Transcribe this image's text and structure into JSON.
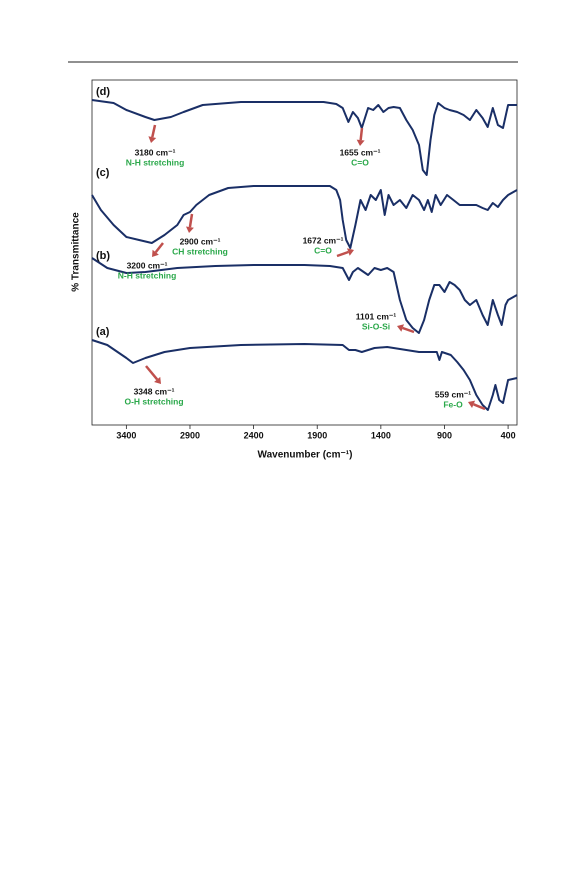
{
  "chart_data": {
    "type": "line",
    "xlabel": "Wavenumber (cm⁻¹)",
    "ylabel": "% Transmittance",
    "xlim": [
      3670,
      330
    ],
    "ylim": [
      0,
      345
    ],
    "xticks": [
      3400,
      2900,
      2400,
      1900,
      1400,
      900,
      400
    ],
    "series": [
      {
        "name": "(a)",
        "color": "#1a2f66",
        "x": [
          3670,
          3550,
          3400,
          3348,
          3250,
          3100,
          2900,
          2500,
          2000,
          1700,
          1650,
          1600,
          1550,
          1450,
          1350,
          1300,
          1200,
          1100,
          1000,
          960,
          940,
          920,
          850,
          800,
          750,
          700,
          650,
          600,
          559,
          520,
          500,
          470,
          440,
          400,
          330
        ],
        "values": [
          85,
          80,
          67,
          62,
          67,
          73,
          77,
          80,
          81,
          80,
          75,
          75,
          73,
          77,
          78,
          77,
          75,
          73,
          73,
          73,
          65,
          73,
          70,
          63,
          55,
          45,
          30,
          20,
          15,
          30,
          40,
          25,
          22,
          45,
          47
        ]
      },
      {
        "name": "(b)",
        "color": "#1a2f66",
        "x": [
          3670,
          3550,
          3400,
          3250,
          3000,
          2700,
          2400,
          2000,
          1800,
          1700,
          1650,
          1620,
          1580,
          1500,
          1450,
          1400,
          1350,
          1300,
          1250,
          1200,
          1150,
          1101,
          1060,
          1020,
          980,
          940,
          900,
          860,
          820,
          780,
          740,
          700,
          650,
          600,
          560,
          520,
          480,
          450,
          420,
          400,
          330
        ],
        "values": [
          167,
          157,
          152,
          153,
          157,
          159,
          160,
          160,
          159,
          157,
          145,
          153,
          157,
          150,
          157,
          155,
          157,
          153,
          125,
          105,
          97,
          92,
          105,
          125,
          140,
          140,
          133,
          143,
          140,
          135,
          125,
          120,
          125,
          110,
          100,
          125,
          110,
          100,
          120,
          125,
          130
        ]
      },
      {
        "name": "(c)",
        "color": "#1a2f66",
        "x": [
          3670,
          3600,
          3500,
          3400,
          3300,
          3200,
          3100,
          3000,
          2950,
          2900,
          2850,
          2750,
          2600,
          2400,
          2000,
          1800,
          1750,
          1720,
          1700,
          1672,
          1640,
          1600,
          1560,
          1520,
          1480,
          1440,
          1400,
          1370,
          1340,
          1300,
          1250,
          1200,
          1150,
          1100,
          1060,
          1030,
          1000,
          970,
          930,
          880,
          830,
          780,
          720,
          650,
          600,
          560,
          520,
          480,
          440,
          400,
          330
        ],
        "values": [
          230,
          215,
          200,
          188,
          185,
          182,
          190,
          200,
          210,
          213,
          220,
          230,
          237,
          239,
          239,
          239,
          235,
          225,
          205,
          185,
          177,
          200,
          225,
          215,
          230,
          225,
          235,
          210,
          230,
          220,
          225,
          217,
          230,
          225,
          215,
          225,
          213,
          230,
          220,
          230,
          225,
          220,
          220,
          220,
          217,
          215,
          222,
          218,
          225,
          230,
          235
        ]
      },
      {
        "name": "(d)",
        "color": "#1a2f66",
        "x": [
          3670,
          3500,
          3400,
          3250,
          3180,
          3050,
          2950,
          2800,
          2500,
          2000,
          1850,
          1750,
          1700,
          1655,
          1620,
          1580,
          1550,
          1500,
          1460,
          1420,
          1380,
          1340,
          1300,
          1250,
          1200,
          1150,
          1100,
          1070,
          1040,
          1010,
          980,
          950,
          900,
          860,
          800,
          750,
          700,
          650,
          600,
          560,
          520,
          480,
          440,
          400,
          330
        ],
        "values": [
          325,
          322,
          315,
          308,
          305,
          308,
          313,
          320,
          323,
          323,
          323,
          321,
          317,
          303,
          313,
          307,
          297,
          317,
          315,
          320,
          313,
          317,
          318,
          317,
          305,
          295,
          280,
          255,
          250,
          285,
          310,
          322,
          317,
          315,
          313,
          310,
          305,
          315,
          307,
          298,
          317,
          300,
          297,
          320,
          320
        ]
      }
    ],
    "annotations": [
      {
        "text": "3180 cm⁻¹",
        "note": "N-H stretching"
      },
      {
        "text": "1655 cm⁻¹",
        "note": "C=O"
      },
      {
        "text": "2900 cm⁻¹",
        "note": "CH stretching"
      },
      {
        "text": "3200 cm⁻¹",
        "note": "N-H stretching"
      },
      {
        "text": "1672 cm⁻¹",
        "note": "C=O"
      },
      {
        "text": "1101 cm⁻¹",
        "note": "Si-O-Si"
      },
      {
        "text": "3348 cm⁻¹",
        "note": "O-H stretching"
      },
      {
        "text": "559 cm⁻¹",
        "note": "Fe-O"
      }
    ]
  }
}
